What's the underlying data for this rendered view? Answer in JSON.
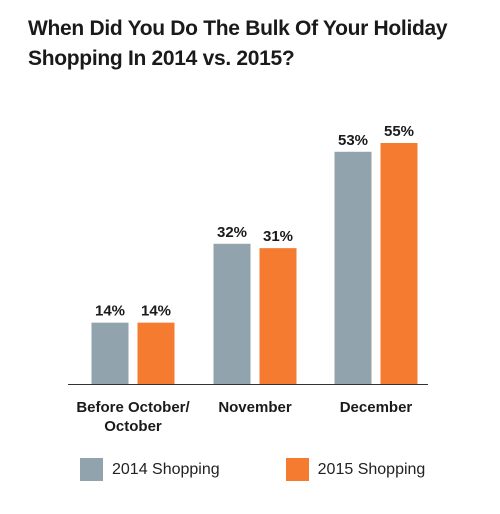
{
  "chart_data": {
    "type": "bar",
    "title_lines": [
      "When Did You Do The Bulk Of Your Holiday",
      "Shopping In 2014 vs. 2015?"
    ],
    "categories": [
      [
        "Before October/",
        "October"
      ],
      [
        "November"
      ],
      [
        "December"
      ]
    ],
    "series": [
      {
        "name": "2014 Shopping",
        "values": [
          14,
          32,
          53
        ],
        "color": "#91a4ad"
      },
      {
        "name": "2015 Shopping",
        "values": [
          14,
          31,
          55
        ],
        "color": "#f47b30"
      }
    ],
    "value_suffix": "%",
    "ylim": [
      0,
      55
    ],
    "grid": false,
    "legend_position": "bottom"
  }
}
